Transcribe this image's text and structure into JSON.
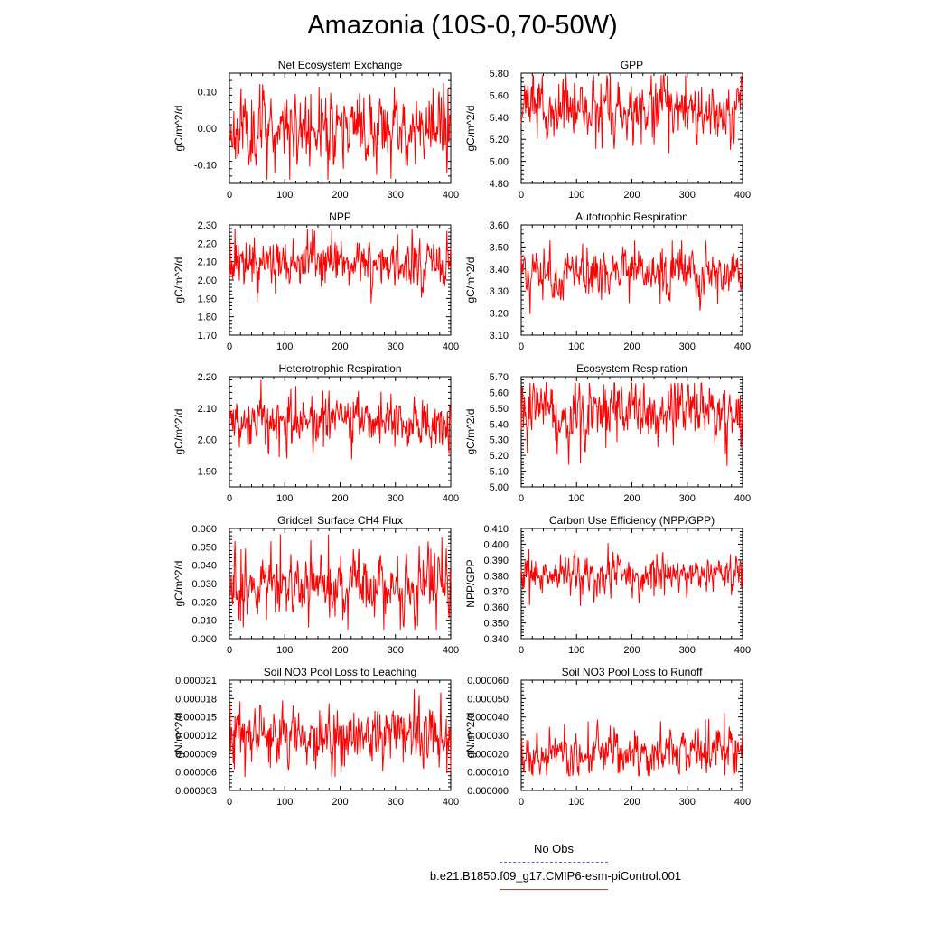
{
  "figure": {
    "title": "Amazonia (10S-0,70-50W)",
    "legend": {
      "obs_label": "No Obs",
      "case_label": "b.e21.B1850.f09_g17.CMIP6-esm-piControl.001"
    },
    "colors": {
      "series": "#ff0000",
      "obs": "#5b5bd6",
      "axis": "#000000"
    }
  },
  "chart_data": [
    {
      "type": "line",
      "title": "Net Ecosystem Exchange",
      "xlabel": "",
      "ylabel": "gC/m^2/d",
      "xlim": [
        0,
        400
      ],
      "ylim": [
        -0.15,
        0.15
      ],
      "xticks": [
        0,
        100,
        200,
        300,
        400
      ],
      "yticks": [
        -0.1,
        0.0,
        0.1
      ],
      "ytick_labels": [
        "-0.10",
        "0.00",
        "0.10"
      ],
      "series": [
        {
          "name": "b.e21.B1850.f09_g17.CMIP6-esm-piControl.001",
          "base": 0.0,
          "amp": 0.05,
          "lo": -0.14,
          "hi": 0.14,
          "seed": 11
        }
      ]
    },
    {
      "type": "line",
      "title": "GPP",
      "xlabel": "",
      "ylabel": "gC/m^2/d",
      "xlim": [
        0,
        400
      ],
      "ylim": [
        4.8,
        5.8
      ],
      "xticks": [
        0,
        100,
        200,
        300,
        400
      ],
      "yticks": [
        4.8,
        5.0,
        5.2,
        5.4,
        5.6,
        5.8
      ],
      "ytick_labels": [
        "4.80",
        "5.00",
        "5.20",
        "5.40",
        "5.60",
        "5.80"
      ],
      "series": [
        {
          "name": "b.e21.B1850.f09_g17.CMIP6-esm-piControl.001",
          "base": 5.48,
          "amp": 0.13,
          "lo": 4.95,
          "hi": 5.78,
          "seed": 23
        }
      ]
    },
    {
      "type": "line",
      "title": "NPP",
      "xlabel": "",
      "ylabel": "gC/m^2/d",
      "xlim": [
        0,
        400
      ],
      "ylim": [
        1.7,
        2.3
      ],
      "xticks": [
        0,
        100,
        200,
        300,
        400
      ],
      "yticks": [
        1.7,
        1.8,
        1.9,
        2.0,
        2.1,
        2.2,
        2.3
      ],
      "ytick_labels": [
        "1.70",
        "1.80",
        "1.90",
        "2.00",
        "2.10",
        "2.20",
        "2.30"
      ],
      "series": [
        {
          "name": "b.e21.B1850.f09_g17.CMIP6-esm-piControl.001",
          "base": 2.09,
          "amp": 0.065,
          "lo": 1.74,
          "hi": 2.28,
          "seed": 37
        }
      ]
    },
    {
      "type": "line",
      "title": "Autotrophic Respiration",
      "xlabel": "",
      "ylabel": "gC/m^2/d",
      "xlim": [
        0,
        400
      ],
      "ylim": [
        3.1,
        3.6
      ],
      "xticks": [
        0,
        100,
        200,
        300,
        400
      ],
      "yticks": [
        3.1,
        3.2,
        3.3,
        3.4,
        3.5,
        3.6
      ],
      "ytick_labels": [
        "3.10",
        "3.20",
        "3.30",
        "3.40",
        "3.50",
        "3.60"
      ],
      "series": [
        {
          "name": "b.e21.B1850.f09_g17.CMIP6-esm-piControl.001",
          "base": 3.38,
          "amp": 0.055,
          "lo": 3.19,
          "hi": 3.53,
          "seed": 41
        }
      ]
    },
    {
      "type": "line",
      "title": "Heterotrophic Respiration",
      "xlabel": "",
      "ylabel": "gC/m^2/d",
      "xlim": [
        0,
        400
      ],
      "ylim": [
        1.85,
        2.2
      ],
      "xticks": [
        0,
        100,
        200,
        300,
        400
      ],
      "yticks": [
        1.9,
        2.0,
        2.1,
        2.2
      ],
      "ytick_labels": [
        "1.90",
        "2.00",
        "2.10",
        "2.20"
      ],
      "series": [
        {
          "name": "b.e21.B1850.f09_g17.CMIP6-esm-piControl.001",
          "base": 2.06,
          "amp": 0.04,
          "lo": 1.86,
          "hi": 2.19,
          "seed": 53
        }
      ]
    },
    {
      "type": "line",
      "title": "Ecosystem Respiration",
      "xlabel": "",
      "ylabel": "gC/m^2/d",
      "xlim": [
        0,
        400
      ],
      "ylim": [
        5.0,
        5.7
      ],
      "xticks": [
        0,
        100,
        200,
        300,
        400
      ],
      "yticks": [
        5.0,
        5.1,
        5.2,
        5.3,
        5.4,
        5.5,
        5.6,
        5.7
      ],
      "ytick_labels": [
        "5.00",
        "5.10",
        "5.20",
        "5.30",
        "5.40",
        "5.50",
        "5.60",
        "5.70"
      ],
      "series": [
        {
          "name": "b.e21.B1850.f09_g17.CMIP6-esm-piControl.001",
          "base": 5.45,
          "amp": 0.09,
          "lo": 5.08,
          "hi": 5.66,
          "seed": 67
        }
      ]
    },
    {
      "type": "line",
      "title": "Gridcell Surface CH4 Flux",
      "xlabel": "",
      "ylabel": "gC/m^2/d",
      "xlim": [
        0,
        400
      ],
      "ylim": [
        0.0,
        0.06
      ],
      "xticks": [
        0,
        100,
        200,
        300,
        400
      ],
      "yticks": [
        0.0,
        0.01,
        0.02,
        0.03,
        0.04,
        0.05,
        0.06
      ],
      "ytick_labels": [
        "0.000",
        "0.010",
        "0.020",
        "0.030",
        "0.040",
        "0.050",
        "0.060"
      ],
      "series": [
        {
          "name": "b.e21.B1850.f09_g17.CMIP6-esm-piControl.001",
          "base": 0.028,
          "amp": 0.009,
          "lo": 0.005,
          "hi": 0.057,
          "seed": 71
        }
      ]
    },
    {
      "type": "line",
      "title": "Carbon Use Efficiency (NPP/GPP)",
      "xlabel": "",
      "ylabel": "NPP/GPP",
      "xlim": [
        0,
        400
      ],
      "ylim": [
        0.34,
        0.41
      ],
      "xticks": [
        0,
        100,
        200,
        300,
        400
      ],
      "yticks": [
        0.34,
        0.35,
        0.36,
        0.37,
        0.38,
        0.39,
        0.4,
        0.41
      ],
      "ytick_labels": [
        "0.340",
        "0.350",
        "0.360",
        "0.370",
        "0.380",
        "0.390",
        "0.400",
        "0.410"
      ],
      "series": [
        {
          "name": "b.e21.B1850.f09_g17.CMIP6-esm-piControl.001",
          "base": 0.381,
          "amp": 0.006,
          "lo": 0.344,
          "hi": 0.401,
          "seed": 83
        }
      ]
    },
    {
      "type": "line",
      "title": "Soil NO3 Pool Loss to Leaching",
      "xlabel": "",
      "ylabel": "gN/m^2/d",
      "xlim": [
        0,
        400
      ],
      "ylim": [
        3e-06,
        2.1e-05
      ],
      "xticks": [
        0,
        100,
        200,
        300,
        400
      ],
      "yticks": [
        3e-06,
        6e-06,
        9e-06,
        1.2e-05,
        1.5e-05,
        1.8e-05,
        2.1e-05
      ],
      "ytick_labels": [
        "0.000003",
        "0.000006",
        "0.000009",
        "0.000012",
        "0.000015",
        "0.000018",
        "0.000021"
      ],
      "series": [
        {
          "name": "b.e21.B1850.f09_g17.CMIP6-esm-piControl.001",
          "base": 1.22e-05,
          "amp": 2.5e-06,
          "lo": 5.2e-06,
          "hi": 1.95e-05,
          "seed": 97
        }
      ]
    },
    {
      "type": "line",
      "title": "Soil NO3 Pool Loss to Runoff",
      "xlabel": "",
      "ylabel": "gN/m^2/d",
      "xlim": [
        0,
        400
      ],
      "ylim": [
        0.0,
        6e-05
      ],
      "xticks": [
        0,
        100,
        200,
        300,
        400
      ],
      "yticks": [
        0.0,
        1e-05,
        2e-05,
        3e-05,
        4e-05,
        5e-05,
        6e-05
      ],
      "ytick_labels": [
        "0.000000",
        "0.000010",
        "0.000020",
        "0.000030",
        "0.000040",
        "0.000050",
        "0.000060"
      ],
      "series": [
        {
          "name": "b.e21.B1850.f09_g17.CMIP6-esm-piControl.001",
          "base": 2.1e-05,
          "amp": 6.5e-06,
          "lo": 8e-06,
          "hi": 5.1e-05,
          "seed": 109
        }
      ]
    }
  ]
}
